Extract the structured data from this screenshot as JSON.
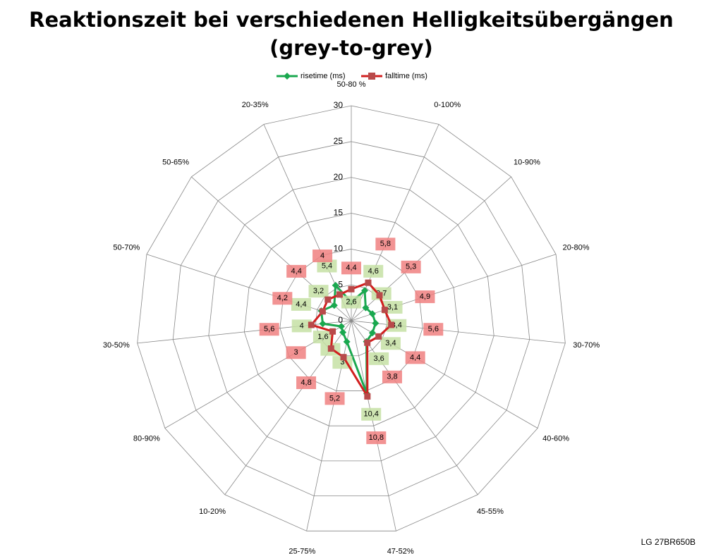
{
  "chart_data": {
    "type": "radar",
    "title": "Reaktionszeit bei verschiedenen Helligkeitsübergängen",
    "subtitle": "(grey-to-grey)",
    "footnote": "LG 27BR650B",
    "categories": [
      "50-80 %",
      "0-100%",
      "10-90%",
      "20-80%",
      "30-70%",
      "40-60%",
      "45-55%",
      "47-52%",
      "25-75%",
      "10-20%",
      "80-90%",
      "30-50%",
      "50-70%",
      "50-65%",
      "20-35%"
    ],
    "series": [
      {
        "name": "risetime (ms)",
        "color": "#1aa84f",
        "label_color": "#c5e0a5",
        "values": [
          2.6,
          4.6,
          2.7,
          3.1,
          3.4,
          3.4,
          3.6,
          10.4,
          3,
          2,
          1.6,
          4,
          4.4,
          3.2,
          5.4
        ],
        "value_labels": [
          "2,6",
          "4,6",
          "2,7",
          "3,1",
          "3,4",
          "3,4",
          "3,6",
          "10,4",
          "3",
          "2",
          "1,6",
          "4",
          "4,4",
          "3,2",
          "5,4"
        ]
      },
      {
        "name": "falltime (ms)",
        "color": "#d21f1f",
        "label_color": "#f08080",
        "values": [
          4.4,
          5.8,
          5.3,
          4.9,
          5.6,
          4.4,
          3.8,
          10.8,
          5.2,
          4.8,
          3,
          5.6,
          4.2,
          4.4,
          4
        ],
        "value_labels": [
          "4,4",
          "5,8",
          "5,3",
          "4,9",
          "5,6",
          "4,4",
          "3,8",
          "10,8",
          "5,2",
          "4,8",
          "3",
          "5,6",
          "4,2",
          "4,4",
          "4"
        ]
      }
    ],
    "rlim": [
      0,
      30
    ],
    "rticks": [
      0,
      5,
      10,
      15,
      20,
      25,
      30
    ],
    "grid": true,
    "legend": "top"
  }
}
